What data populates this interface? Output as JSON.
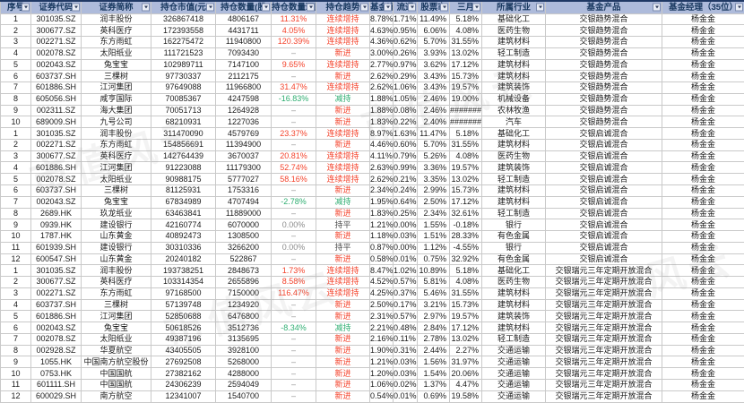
{
  "watermark": {
    "text": "市值风云"
  },
  "colors": {
    "header_bg": "#AEBBDB",
    "header_text": "#17375E",
    "top_border": "#1F3864",
    "grid": "#C9C9C9",
    "increase_red": "#F4432C",
    "decrease_green": "#2EAE71",
    "flat_gray": "#8C8C8C"
  },
  "table": {
    "columns": [
      {
        "id": "seq",
        "label": "序号",
        "width": 34,
        "align": "center",
        "filter": true
      },
      {
        "id": "code",
        "label": "证券代码",
        "width": 56,
        "align": "center",
        "filter": true
      },
      {
        "id": "name",
        "label": "证券简称",
        "width": 78,
        "align": "center",
        "filter": true
      },
      {
        "id": "mktval",
        "label": "持仓市值(元",
        "width": 72,
        "align": "center",
        "filter": true
      },
      {
        "id": "qty",
        "label": "持仓数量(股",
        "width": 62,
        "align": "center",
        "filter": true
      },
      {
        "id": "qty-chg",
        "label": "持仓数量环比",
        "width": 50,
        "align": "center",
        "filter": true,
        "colorize": "chg"
      },
      {
        "id": "trend",
        "label": "持仓趋势",
        "width": 60,
        "align": "center",
        "filter": true,
        "colorize": "trend"
      },
      {
        "id": "nav-pct",
        "label": "基金净",
        "width": 26,
        "align": "right",
        "filter": true
      },
      {
        "id": "float-pct",
        "label": "流通",
        "width": 27,
        "align": "right",
        "filter": true
      },
      {
        "id": "stockmv-pct",
        "label": "股票市",
        "width": 36,
        "align": "right",
        "filter": true
      },
      {
        "id": "m3-pct",
        "label": "三月",
        "width": 36,
        "align": "right",
        "filter": true
      },
      {
        "id": "industry",
        "label": "所属行业",
        "width": 71,
        "align": "center",
        "filter": true
      },
      {
        "id": "product",
        "label": "基金产品",
        "width": 130,
        "align": "center",
        "filter": true
      },
      {
        "id": "manager",
        "label": "基金经理（35位）",
        "width": 92,
        "align": "center",
        "filter": true
      }
    ],
    "rows": [
      [
        "1",
        "301035.SZ",
        "润丰股份",
        "326867418",
        "4806167",
        "11.31%",
        "连续增持",
        "8.78%",
        "1.71%",
        "11.49%",
        "5.18%",
        "基础化工",
        "交银趋势混合",
        "杨金金"
      ],
      [
        "2",
        "300677.SZ",
        "英科医疗",
        "172393558",
        "4431711",
        "4.05%",
        "连续增持",
        "4.63%",
        "0.95%",
        "6.06%",
        "4.08%",
        "医药生物",
        "交银趋势混合",
        "杨金金"
      ],
      [
        "3",
        "002271.SZ",
        "东方雨虹",
        "162275472",
        "11940800",
        "120.39%",
        "连续增持",
        "4.36%",
        "0.62%",
        "5.70%",
        "31.55%",
        "建筑材料",
        "交银趋势混合",
        "杨金金"
      ],
      [
        "4",
        "002078.SZ",
        "太阳纸业",
        "111721523",
        "7093430",
        "–",
        "新进",
        "3.00%",
        "0.26%",
        "3.93%",
        "13.02%",
        "轻工制造",
        "交银趋势混合",
        "杨金金"
      ],
      [
        "5",
        "002043.SZ",
        "兔宝宝",
        "102989711",
        "7147100",
        "9.65%",
        "连续增持",
        "2.77%",
        "0.97%",
        "3.62%",
        "17.12%",
        "建筑材料",
        "交银趋势混合",
        "杨金金"
      ],
      [
        "6",
        "603737.SH",
        "三棵树",
        "97730337",
        "2112175",
        "–",
        "新进",
        "2.62%",
        "0.29%",
        "3.43%",
        "15.73%",
        "建筑材料",
        "交银趋势混合",
        "杨金金"
      ],
      [
        "7",
        "601886.SH",
        "江河集团",
        "97649088",
        "11966800",
        "31.47%",
        "连续增持",
        "2.62%",
        "1.06%",
        "3.43%",
        "19.57%",
        "建筑装饰",
        "交银趋势混合",
        "杨金金"
      ],
      [
        "8",
        "605056.SH",
        "咸亨国际",
        "70085367",
        "4247598",
        "-16.83%",
        "减持",
        "1.88%",
        "1.05%",
        "2.46%",
        "19.00%",
        "机械设备",
        "交银趋势混合",
        "杨金金"
      ],
      [
        "9",
        "002311.SZ",
        "海大集团",
        "70051713",
        "1264928",
        "–",
        "新进",
        "1.88%",
        "0.08%",
        "2.46%",
        "#######",
        "农林牧渔",
        "交银趋势混合",
        "杨金金"
      ],
      [
        "10",
        "689009.SH",
        "九号公司",
        "68210931",
        "1227036",
        "–",
        "新进",
        "1.83%",
        "0.22%",
        "2.40%",
        "#######",
        "汽车",
        "交银趋势混合",
        "杨金金"
      ],
      [
        "1",
        "301035.SZ",
        "润丰股份",
        "311470090",
        "4579769",
        "23.37%",
        "连续增持",
        "8.97%",
        "1.63%",
        "11.47%",
        "5.18%",
        "基础化工",
        "交银启诚混合",
        "杨金金"
      ],
      [
        "2",
        "002271.SZ",
        "东方雨虹",
        "154856691",
        "11394900",
        "–",
        "新进",
        "4.46%",
        "0.60%",
        "5.70%",
        "31.55%",
        "建筑材料",
        "交银启诚混合",
        "杨金金"
      ],
      [
        "3",
        "300677.SZ",
        "英科医疗",
        "142764439",
        "3670037",
        "20.81%",
        "连续增持",
        "4.11%",
        "0.79%",
        "5.26%",
        "4.08%",
        "医药生物",
        "交银启诚混合",
        "杨金金"
      ],
      [
        "4",
        "601886.SH",
        "江河集团",
        "91223088",
        "11179300",
        "52.74%",
        "连续增持",
        "2.63%",
        "0.99%",
        "3.36%",
        "19.57%",
        "建筑装饰",
        "交银启诚混合",
        "杨金金"
      ],
      [
        "5",
        "002078.SZ",
        "太阳纸业",
        "90988175",
        "5777027",
        "58.16%",
        "连续增持",
        "2.62%",
        "0.21%",
        "3.35%",
        "13.02%",
        "轻工制造",
        "交银启诚混合",
        "杨金金"
      ],
      [
        "6",
        "603737.SH",
        "三棵树",
        "81125931",
        "1753316",
        "–",
        "新进",
        "2.34%",
        "0.24%",
        "2.99%",
        "15.73%",
        "建筑材料",
        "交银启诚混合",
        "杨金金"
      ],
      [
        "7",
        "002043.SZ",
        "兔宝宝",
        "67834989",
        "4707494",
        "-2.78%",
        "减持",
        "1.95%",
        "0.64%",
        "2.50%",
        "17.12%",
        "建筑材料",
        "交银启诚混合",
        "杨金金"
      ],
      [
        "8",
        "2689.HK",
        "玖龙纸业",
        "63463841",
        "11889000",
        "–",
        "新进",
        "1.83%",
        "0.25%",
        "2.34%",
        "32.61%",
        "轻工制造",
        "交银启诚混合",
        "杨金金"
      ],
      [
        "9",
        "0939.HK",
        "建设银行",
        "42160774",
        "6070000",
        "0.00%",
        "持平",
        "1.21%",
        "0.00%",
        "1.55%",
        "-0.18%",
        "银行",
        "交银启诚混合",
        "杨金金"
      ],
      [
        "10",
        "1787.HK",
        "山东黄金",
        "40892473",
        "1308500",
        "–",
        "新进",
        "1.18%",
        "0.03%",
        "1.51%",
        "28.33%",
        "有色金属",
        "交银启诚混合",
        "杨金金"
      ],
      [
        "11",
        "601939.SH",
        "建设银行",
        "30310336",
        "3266200",
        "0.00%",
        "持平",
        "0.87%",
        "0.00%",
        "1.12%",
        "-4.55%",
        "银行",
        "交银启诚混合",
        "杨金金"
      ],
      [
        "12",
        "600547.SH",
        "山东黄金",
        "20240182",
        "522867",
        "–",
        "新进",
        "0.58%",
        "0.01%",
        "0.75%",
        "32.92%",
        "有色金属",
        "交银启诚混合",
        "杨金金"
      ],
      [
        "1",
        "301035.SZ",
        "润丰股份",
        "193738251",
        "2848673",
        "1.73%",
        "连续增持",
        "8.47%",
        "1.02%",
        "10.89%",
        "5.18%",
        "基础化工",
        "交银瑞元三年定期开放混合",
        "杨金金"
      ],
      [
        "2",
        "300677.SZ",
        "英科医疗",
        "103314354",
        "2655896",
        "8.58%",
        "连续增持",
        "4.52%",
        "0.57%",
        "5.81%",
        "4.08%",
        "医药生物",
        "交银瑞元三年定期开放混合",
        "杨金金"
      ],
      [
        "3",
        "002271.SZ",
        "东方雨虹",
        "97168500",
        "7150000",
        "116.47%",
        "连续增持",
        "4.25%",
        "0.37%",
        "5.46%",
        "31.55%",
        "建筑材料",
        "交银瑞元三年定期开放混合",
        "杨金金"
      ],
      [
        "4",
        "603737.SH",
        "三棵树",
        "57139748",
        "1234920",
        "–",
        "新进",
        "2.50%",
        "0.17%",
        "3.21%",
        "15.73%",
        "建筑材料",
        "交银瑞元三年定期开放混合",
        "杨金金"
      ],
      [
        "5",
        "601886.SH",
        "江河集团",
        "52850688",
        "6476800",
        "–",
        "新进",
        "2.31%",
        "0.57%",
        "2.97%",
        "19.57%",
        "建筑装饰",
        "交银瑞元三年定期开放混合",
        "杨金金"
      ],
      [
        "6",
        "002043.SZ",
        "兔宝宝",
        "50618526",
        "3512736",
        "-8.34%",
        "减持",
        "2.21%",
        "0.48%",
        "2.84%",
        "17.12%",
        "建筑材料",
        "交银瑞元三年定期开放混合",
        "杨金金"
      ],
      [
        "7",
        "002078.SZ",
        "太阳纸业",
        "49387196",
        "3135695",
        "–",
        "新进",
        "2.16%",
        "0.11%",
        "2.78%",
        "13.02%",
        "轻工制造",
        "交银瑞元三年定期开放混合",
        "杨金金"
      ],
      [
        "8",
        "002928.SZ",
        "华夏航空",
        "43405505",
        "3928100",
        "–",
        "新进",
        "1.90%",
        "0.31%",
        "2.44%",
        "2.27%",
        "交通运输",
        "交银瑞元三年定期开放混合",
        "杨金金"
      ],
      [
        "9",
        "1055.HK",
        "中国南方航空股份",
        "27692508",
        "5268000",
        "–",
        "新进",
        "1.21%",
        "0.03%",
        "1.56%",
        "31.97%",
        "交通运输",
        "交银瑞元三年定期开放混合",
        "杨金金"
      ],
      [
        "10",
        "0753.HK",
        "中国国航",
        "27382162",
        "4288000",
        "–",
        "新进",
        "1.20%",
        "0.03%",
        "1.54%",
        "20.06%",
        "交通运输",
        "交银瑞元三年定期开放混合",
        "杨金金"
      ],
      [
        "11",
        "601111.SH",
        "中国国航",
        "24306239",
        "2594049",
        "–",
        "新进",
        "1.06%",
        "0.02%",
        "1.37%",
        "4.47%",
        "交通运输",
        "交银瑞元三年定期开放混合",
        "杨金金"
      ],
      [
        "12",
        "600029.SH",
        "南方航空",
        "12341007",
        "1540700",
        "–",
        "新进",
        "0.54%",
        "0.01%",
        "0.69%",
        "19.58%",
        "交通运输",
        "交银瑞元三年定期开放混合",
        "杨金金"
      ]
    ]
  }
}
